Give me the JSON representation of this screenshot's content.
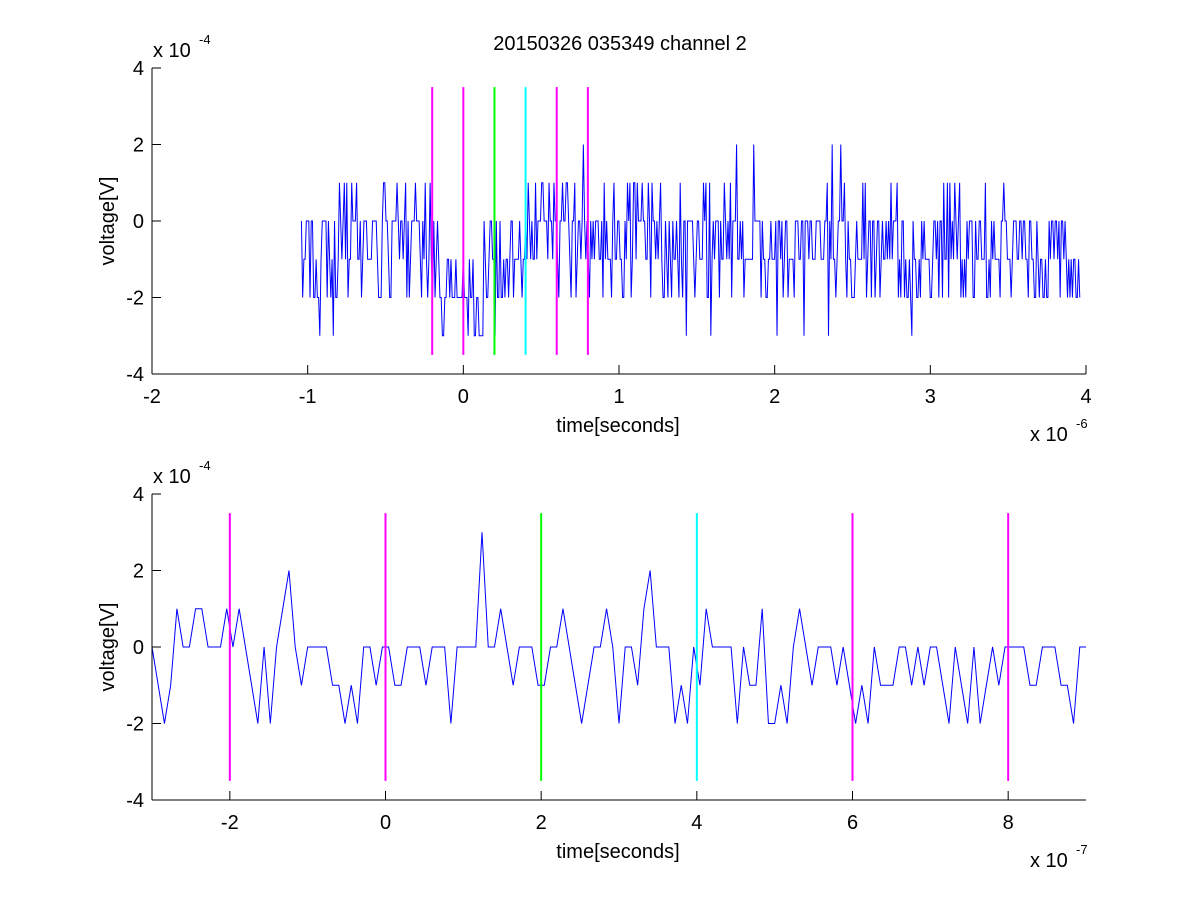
{
  "chart_data": [
    {
      "type": "line",
      "title": "20150326 035349 channel 2",
      "xlabel": "time[seconds]",
      "ylabel": "voltage[V]",
      "x_exponent_label": "x 10",
      "x_exponent": "-6",
      "y_exponent_label": "x 10",
      "y_exponent": "-4",
      "xlim": [
        -2e-06,
        4e-06
      ],
      "ylim": [
        -0.0004,
        0.0004
      ],
      "xticks": [
        -2e-06,
        -1e-06,
        0,
        1e-06,
        2e-06,
        3e-06,
        4e-06
      ],
      "xtick_labels": [
        "-2",
        "-1",
        "0",
        "1",
        "2",
        "3",
        "4"
      ],
      "yticks": [
        -0.0004,
        -0.0002,
        0,
        0.0002,
        0.0004
      ],
      "ytick_labels": [
        "-4",
        "-2",
        "0",
        "2",
        "4"
      ],
      "grid": false,
      "series": [
        {
          "color": "#0000ff",
          "x_start": -1.04e-06,
          "x_end": 3.96e-06,
          "sample_count": 625,
          "levels": [
            -0.00032,
            -0.00024,
            -0.00016,
            -8e-05,
            0,
            8e-05,
            0.00016,
            0.00024,
            0.00032
          ],
          "values": [
            0.0,
            -0.0002,
            -0.0001,
            -0.0001,
            0.0,
            0.0,
            0.0,
            -0.0002,
            0.0,
            0.0,
            -0.0002,
            -0.0002,
            -0.0001,
            -0.0002,
            -0.0002,
            -0.0003,
            -0.0001,
            0.0,
            0.0,
            -0.0,
            0.0,
            -0.0002,
            -0.0,
            -0.0001,
            -0.0002,
            -0.0001,
            -0.0003,
            -0.0,
            -0.0002,
            -0.0002,
            -0.0001,
            0.0001,
            -0.0,
            -0.0001,
            -0.0,
            0.0001,
            -0.0001,
            0.0001,
            -0.0002,
            -0.0001,
            -0.0001,
            0.0001,
            0.0,
            -0.0,
            0.0,
            0.0001,
            -0.0001,
            -0.0001,
            0.0,
            -0.0002,
            -0.0001,
            0.0,
            0.0,
            0.0,
            -0.0001,
            -0.0001,
            -0.0001,
            -0.0001,
            -0.0,
            0.0,
            0.0,
            -0.0,
            -0.0001,
            -0.0002,
            -0.0002,
            -0.0002,
            0.0,
            0.0001,
            0.0001,
            -0.0,
            -0.0,
            -0.0001,
            -0.0002,
            -0.0002,
            0.0,
            0.0,
            0.0,
            0.0,
            0.0001,
            0.0,
            -0.0001,
            -0.0,
            0.0,
            -0.0001,
            0.0,
            0.0001,
            -0.0002,
            0.0,
            -0.0002,
            -0.0001,
            0.0,
            0.0,
            -0.0,
            0.0001,
            0.0,
            -0.0,
            -0.0,
            -0.0001,
            -0.0002,
            -0.0,
            -0.0001,
            0.0001,
            -0.0001,
            -0.0002,
            -0.0001,
            0.0001,
            -0.0001,
            -0.0002,
            -0.0,
            -0.0002,
            -0.0001,
            -0.0,
            -0.0001,
            -0.0002,
            -0.0002,
            -0.0003,
            -0.0003,
            -0.0002,
            -0.0002,
            -0.0001,
            -0.0001,
            -0.0002,
            -0.0001,
            -0.0002,
            -0.0002,
            -0.0002,
            -0.0001,
            -0.0002,
            -0.0002,
            -0.0002,
            -0.0002,
            -0.0002,
            -0.0001,
            -0.0002,
            -0.0002,
            -0.0002,
            -0.0003,
            -0.0001,
            -0.0002,
            -0.0002,
            -0.0001,
            -0.0003,
            -0.0003,
            -0.0002,
            -0.0002,
            -0.0003,
            -0.0003,
            -0.0003,
            -0.0003,
            -0.0,
            -0.0001,
            -0.0002,
            -0.0002,
            -0.0001,
            -0.0,
            0.0,
            -0.0001,
            -0.0001,
            -0.0003,
            -0.0,
            -0.0002,
            -0.0002,
            -0.0,
            -0.0002,
            -0.0002,
            -0.0001,
            -0.0002,
            -0.0001,
            -0.0001,
            -0.0002,
            -0.0001,
            -0.0,
            -0.0,
            -0.0002,
            -0.0001,
            -0.0001,
            -0.0001,
            -0.0001,
            -0.0,
            -0.0001,
            -0.0002,
            -0.0001,
            -0.0001,
            -0.0,
            -0.0001,
            0.0001,
            0.0,
            -0.0001,
            0.0,
            -0.0001,
            -0.0001,
            0.0001,
            -0.0001,
            -0.0,
            0.0,
            0.0,
            0.0001,
            0.0001,
            0.0,
            -0.0,
            -0.0,
            -0.0001,
            0.0001,
            0.0,
            0.0,
            -0.0001,
            0.0001,
            -0.0,
            0.0,
            -0.0001,
            -0.0002,
            0.0,
            -0.0,
            0.0001,
            -0.0,
            0.0,
            0.0001,
            0.0001,
            -0.0,
            -0.0001,
            -0.0002,
            0.0,
            0.0,
            0.0001,
            -0.0002,
            -0.0001,
            0.0,
            -0.0,
            -0.0001,
            -0.0,
            0.0002,
            0.0,
            -0.0001,
            -0.0,
            -0.0001,
            -0.0002,
            -0.0,
            -0.0001,
            -0.0,
            -0.0001,
            -0.0,
            0.0,
            0.0,
            -0.0001,
            -0.0001,
            -0.0,
            -0.0002,
            0.0001,
            -0.0001,
            0.0,
            -0.0001,
            -0.0001,
            -0.0001,
            -0.0002,
            -0.0,
            0.0001,
            -0.0001,
            -0.0001,
            0.0,
            0.0,
            -0.0001,
            -0.0001,
            -0.0002,
            -0.0002,
            -0.0,
            -0.0001,
            0.0001,
            -0.0,
            0.0001,
            -0.0002,
            -0.0001,
            0.0001,
            0.0001,
            -0.0001,
            0.0001,
            -0.0,
            -0.0,
            -0.0,
            0.0001,
            -0.0,
            0.0,
            -0.0001,
            -0.0001,
            0.0001,
            -0.0,
            -0.0002,
            0.0001,
            0.0,
            -0.0,
            -0.0001,
            0.0,
            -0.0001,
            -0.0,
            0.0001,
            -0.0001,
            -0.0002,
            -0.0002,
            0.0,
            -0.0001,
            -0.0002,
            0.0,
            -0.0001,
            -0.0002,
            -0.0,
            -0.0001,
            -0.0001,
            0.0,
            -0.0001,
            -0.0002,
            0.0001,
            -0.0001,
            -0.0002,
            0.0,
            -0.0,
            -0.0003,
            0.0,
            -0.0,
            -0.0,
            0.0,
            0.0,
            -0.0001,
            -0.0002,
            -0.0001,
            -0.0,
            0.0,
            -0.0001,
            -0.0001,
            -0.0001,
            0.0001,
            -0.0,
            0.0001,
            -0.0002,
            -0.0002,
            0.0001,
            -0.0003,
            -0.0001,
            -0.0,
            -0.0001,
            -0.0,
            -0.0,
            0.0,
            -0.0002,
            -0.0,
            -0.0001,
            -0.0001,
            0.0001,
            0.0,
            -0.0001,
            0.0,
            -0.0001,
            0.0001,
            -0.0002,
            0.0,
            -0.0,
            0.0,
            0.0002,
            -0.0001,
            -0.0001,
            0.0,
            -0.0001,
            -0.0,
            -0.0002,
            -0.0001,
            -0.0001,
            -0.0001,
            -0.0001,
            -0.0001,
            -0.0001,
            -0.0001,
            0.0002,
            0.0,
            0.0,
            0.0,
            -0.0,
            -0.0,
            -0.0002,
            -0.0,
            -0.0001,
            -0.0001,
            -0.0002,
            -0.0002,
            -0.0001,
            -0.0001,
            -0.0,
            -0.0001,
            -0.0001,
            -0.0001,
            -0.0,
            -0.0003,
            -0.0,
            -0.0,
            -0.0001,
            -0.0,
            -0.0002,
            -0.0001,
            -0.0,
            0.0,
            -0.0002,
            -0.0001,
            -0.0001,
            -0.0001,
            -0.0001,
            -0.0002,
            0.0,
            -0.0,
            0.0,
            -0.0001,
            -0.0001,
            0.0,
            0.0,
            -0.0003,
            -0.0,
            -0.0,
            0.0,
            -0.0001,
            -0.0,
            0.0,
            -0.0001,
            -0.0001,
            -0.0001,
            0.0,
            -0.0,
            0.0,
            -0.0,
            -0.0001,
            -0.0001,
            -0.0001,
            0.0,
            -0.0,
            0.0001,
            -0.0003,
            -0.0,
            -0.0001,
            0.0002,
            -0.0001,
            -0.0001,
            -0.0002,
            -0.0001,
            0.0,
            0.0,
            0.0002,
            -0.0,
            -0.0,
            0.0001,
            -0.0001,
            -0.0002,
            -0.0,
            -0.0001,
            -0.0001,
            -0.0002,
            -0.0002,
            -0.0002,
            -0.0001,
            0.0,
            -0.0001,
            -0.0001,
            -0.0001,
            -0.0001,
            0.0001,
            -0.0001,
            0.0001,
            -0.0002,
            -0.0001,
            -0.0,
            0.0,
            -0.0002,
            -0.0,
            0.0,
            -0.0002,
            -0.0001,
            -0.0,
            -0.0,
            -0.0002,
            -0.0001,
            0.0,
            -0.0001,
            -0.0001,
            0.0,
            -0.0001,
            -0.0,
            -0.0001,
            0.0001,
            -0.0001,
            0.0,
            -0.0,
            -0.0,
            0.0001,
            -0.0002,
            -0.0001,
            -0.0002,
            -0.0,
            0.0,
            -0.0002,
            -0.0001,
            -0.0002,
            -0.0002,
            -0.0001,
            -0.0002,
            -0.0003,
            -0.0,
            -0.0001,
            -0.0001,
            -0.0002,
            -0.0002,
            -0.0001,
            -0.0002,
            -0.0,
            -0.0001,
            -0.0,
            -0.0001,
            -0.0001,
            -0.0001,
            -0.0001,
            -0.0002,
            -0.0002,
            -0.0001,
            -0.0,
            -0.0,
            -0.0001,
            0.0,
            -0.0002,
            0.0,
            -0.0,
            -0.0002,
            0.0001,
            -0.0001,
            -0.0001,
            0.0001,
            -0.0002,
            0.0001,
            -0.0001,
            -0.0,
            -0.0001,
            0.0001,
            -0.0,
            -0.0001,
            -0.0,
            0.0001,
            -0.0002,
            -0.0001,
            -0.0002,
            -0.0001,
            -0.0002,
            -0.0,
            -0.0001,
            -0.0,
            -0.0,
            -0.0,
            -0.0002,
            -0.0002,
            0.0,
            -0.0001,
            -0.0001,
            -0.0,
            0.0,
            -0.0001,
            -0.0001,
            -0.0001,
            0.0001,
            -0.0002,
            -0.0002,
            -0.0001,
            -0.0002,
            0.0,
            -0.0001,
            -0.0,
            -0.0001,
            -0.0001,
            -0.0001,
            -0.0001,
            -0.0002,
            -0.0,
            0.0,
            0.0001,
            -0.0,
            -0.0,
            -0.0001,
            -0.0001,
            -0.0001,
            -0.0002,
            -0.0001,
            0.0,
            -0.0,
            -0.0,
            -0.0001,
            -0.0001,
            -0.0,
            -0.0,
            -0.0001,
            0.0,
            -0.0,
            -0.0001,
            -0.0001,
            -0.0002,
            0.0,
            0.0,
            -0.0001,
            -0.0001,
            -0.0002,
            -0.0002,
            0.0,
            -0.0001,
            -0.0002,
            -0.0001,
            -0.0001,
            -0.0002,
            -0.0002,
            -0.0001,
            -0.0002,
            -0.0002,
            -0.0,
            -0.0001,
            -0.0,
            -0.0,
            -0.0001,
            -0.0,
            -0.0,
            -0.0001,
            0.0,
            -0.0002,
            -0.0,
            0.0,
            -0.0001,
            0.0,
            -0.0001,
            -0.0002,
            -0.0001,
            -0.0002,
            -0.0001,
            -0.0002,
            -0.0001,
            -0.0001,
            -0.0002,
            -0.0002,
            -0.0001,
            -0.0002
          ]
        }
      ],
      "markers": [
        {
          "x": -2e-07,
          "color": "#ff00ff",
          "y_range": [
            -0.00035,
            0.00035
          ]
        },
        {
          "x": 0,
          "color": "#ff00ff",
          "y_range": [
            -0.00035,
            0.00035
          ]
        },
        {
          "x": 2e-07,
          "color": "#00ff00",
          "y_range": [
            -0.00035,
            0.00035
          ]
        },
        {
          "x": 4e-07,
          "color": "#00ffff",
          "y_range": [
            -0.00035,
            0.00035
          ]
        },
        {
          "x": 6e-07,
          "color": "#ff00ff",
          "y_range": [
            -0.00035,
            0.00035
          ]
        },
        {
          "x": 8e-07,
          "color": "#ff00ff",
          "y_range": [
            -0.00035,
            0.00035
          ]
        }
      ]
    },
    {
      "type": "line",
      "title": "",
      "xlabel": "time[seconds]",
      "ylabel": "voltage[V]",
      "x_exponent_label": "x 10",
      "x_exponent": "-7",
      "y_exponent_label": "x 10",
      "y_exponent": "-4",
      "xlim": [
        -3e-07,
        9e-07
      ],
      "ylim": [
        -0.0004,
        0.0004
      ],
      "xticks": [
        -2e-07,
        0,
        2e-07,
        4e-07,
        6e-07,
        8e-07
      ],
      "xtick_labels": [
        "-2",
        "0",
        "2",
        "4",
        "6",
        "8"
      ],
      "yticks": [
        -0.0004,
        -0.0002,
        0,
        0.0002,
        0.0004
      ],
      "ytick_labels": [
        "-4",
        "-2",
        "0",
        "2",
        "4"
      ],
      "grid": false,
      "series": [
        {
          "color": "#0000ff",
          "x_start": -3e-07,
          "x_end": 9e-07,
          "sample_count": 151,
          "levels": [
            -0.00032,
            -0.00024,
            -0.00016,
            -8e-05,
            0,
            8e-05,
            0.00016,
            0.00024,
            0.00032
          ],
          "values": [
            0.0,
            -0.0001,
            -0.0002,
            -0.0001,
            0.0001,
            -0.0,
            0.0,
            0.0001,
            0.0001,
            0.0,
            -0.0,
            0.0,
            0.0001,
            0.0,
            0.0001,
            0.0,
            -0.0001,
            -0.0002,
            -0.0,
            -0.0002,
            0.0,
            0.0001,
            0.0002,
            -0.0,
            -0.0001,
            0.0,
            0.0,
            0.0,
            0.0,
            -0.0001,
            -0.0001,
            -0.0002,
            -0.0001,
            -0.0002,
            0.0,
            0.0,
            -0.0001,
            -0.0,
            0.0,
            -0.0001,
            -0.0001,
            -0.0,
            0.0,
            0.0,
            -0.0001,
            -0.0,
            -0.0,
            -0.0,
            -0.0002,
            0.0,
            -0.0,
            0.0,
            0.0,
            0.0003,
            0.0,
            -0.0,
            0.0001,
            0.0,
            -0.0001,
            -0.0,
            0.0,
            -0.0,
            -0.0001,
            -0.0001,
            -0.0,
            0.0,
            0.0001,
            0.0,
            -0.0001,
            -0.0002,
            -0.0001,
            -0.0,
            0.0,
            0.0001,
            -0.0,
            -0.0002,
            -0.0,
            0.0,
            -0.0001,
            0.0001,
            0.0002,
            -0.0,
            -0.0,
            0.0,
            -0.0002,
            -0.0001,
            -0.0002,
            -0.0,
            -0.0001,
            0.0001,
            0.0,
            -0.0,
            0.0,
            -0.0,
            -0.0002,
            -0.0,
            -0.0001,
            -0.0001,
            0.0001,
            -0.0002,
            -0.0002,
            -0.0001,
            -0.0002,
            -0.0,
            0.0001,
            0.0,
            -0.0001,
            -0.0,
            0.0,
            0.0,
            -0.0001,
            0.0,
            -0.0001,
            -0.0002,
            -0.0001,
            -0.0002,
            -0.0,
            -0.0001,
            -0.0001,
            -0.0001,
            -0.0,
            0.0,
            -0.0001,
            0.0,
            -0.0001,
            -0.0,
            -0.0,
            -0.0001,
            -0.0002,
            -0.0,
            -0.0001,
            -0.0002,
            -0.0,
            -0.0002,
            -0.0001,
            -0.0,
            -0.0001,
            0.0,
            -0.0,
            -0.0,
            -0.0,
            -0.0001,
            -0.0001,
            0.0,
            0.0,
            0.0,
            -0.0001,
            -0.0001,
            -0.0002,
            -0.0,
            -0.0
          ]
        }
      ],
      "markers": [
        {
          "x": -2e-07,
          "color": "#ff00ff",
          "y_range": [
            -0.00035,
            0.00035
          ]
        },
        {
          "x": 0,
          "color": "#ff00ff",
          "y_range": [
            -0.00035,
            0.00035
          ]
        },
        {
          "x": 2e-07,
          "color": "#00ff00",
          "y_range": [
            -0.00035,
            0.00035
          ]
        },
        {
          "x": 4e-07,
          "color": "#00ffff",
          "y_range": [
            -0.00035,
            0.00035
          ]
        },
        {
          "x": 6e-07,
          "color": "#ff00ff",
          "y_range": [
            -0.00035,
            0.00035
          ]
        },
        {
          "x": 8e-07,
          "color": "#ff00ff",
          "y_range": [
            -0.00035,
            0.00035
          ]
        }
      ]
    }
  ]
}
